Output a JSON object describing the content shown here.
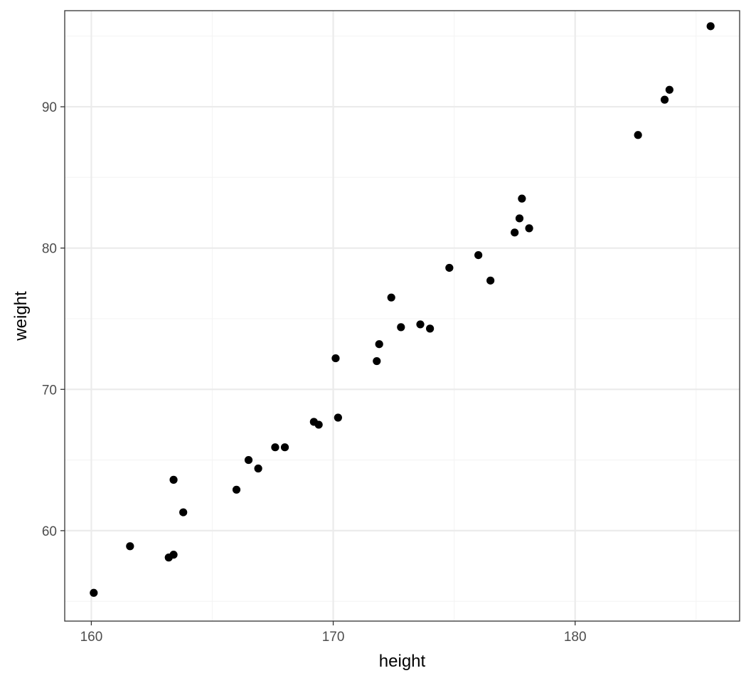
{
  "chart_data": {
    "type": "scatter",
    "title": "",
    "xlabel": "height",
    "ylabel": "weight",
    "xlim": [
      158.9,
      186.8
    ],
    "ylim": [
      53.6,
      96.8
    ],
    "x_ticks": [
      160,
      170,
      180
    ],
    "x_tick_labels": [
      "160",
      "170",
      "180"
    ],
    "x_minor_ticks": [
      165,
      175,
      185
    ],
    "y_ticks": [
      60,
      70,
      80,
      90
    ],
    "y_tick_labels": [
      "60",
      "70",
      "80",
      "90"
    ],
    "y_minor_ticks": [
      55,
      65,
      75,
      85,
      95
    ],
    "grid": true,
    "legend": "none",
    "theme": "black-white",
    "colors": {
      "point": "#000000",
      "grid_major": "#ebebeb",
      "grid_minor": "#f4f4f4",
      "panel_border": "#333333",
      "tick_label": "#4d4d4d"
    },
    "points": [
      {
        "x": 160.1,
        "y": 55.6
      },
      {
        "x": 161.6,
        "y": 58.9
      },
      {
        "x": 163.2,
        "y": 58.1
      },
      {
        "x": 163.4,
        "y": 58.3
      },
      {
        "x": 163.4,
        "y": 63.6
      },
      {
        "x": 163.8,
        "y": 61.3
      },
      {
        "x": 166.0,
        "y": 62.9
      },
      {
        "x": 166.5,
        "y": 65.0
      },
      {
        "x": 166.9,
        "y": 64.4
      },
      {
        "x": 167.6,
        "y": 65.9
      },
      {
        "x": 168.0,
        "y": 65.9
      },
      {
        "x": 169.2,
        "y": 67.7
      },
      {
        "x": 169.4,
        "y": 67.5
      },
      {
        "x": 170.1,
        "y": 72.2
      },
      {
        "x": 170.2,
        "y": 68.0
      },
      {
        "x": 171.8,
        "y": 72.0
      },
      {
        "x": 171.9,
        "y": 73.2
      },
      {
        "x": 172.4,
        "y": 76.5
      },
      {
        "x": 172.8,
        "y": 74.4
      },
      {
        "x": 173.6,
        "y": 74.6
      },
      {
        "x": 174.0,
        "y": 74.3
      },
      {
        "x": 174.8,
        "y": 78.6
      },
      {
        "x": 176.0,
        "y": 79.5
      },
      {
        "x": 176.5,
        "y": 77.7
      },
      {
        "x": 177.5,
        "y": 81.1
      },
      {
        "x": 177.7,
        "y": 82.1
      },
      {
        "x": 177.8,
        "y": 83.5
      },
      {
        "x": 178.1,
        "y": 81.4
      },
      {
        "x": 182.6,
        "y": 88.0
      },
      {
        "x": 183.7,
        "y": 90.5
      },
      {
        "x": 183.9,
        "y": 91.2
      },
      {
        "x": 185.6,
        "y": 95.7
      }
    ]
  }
}
